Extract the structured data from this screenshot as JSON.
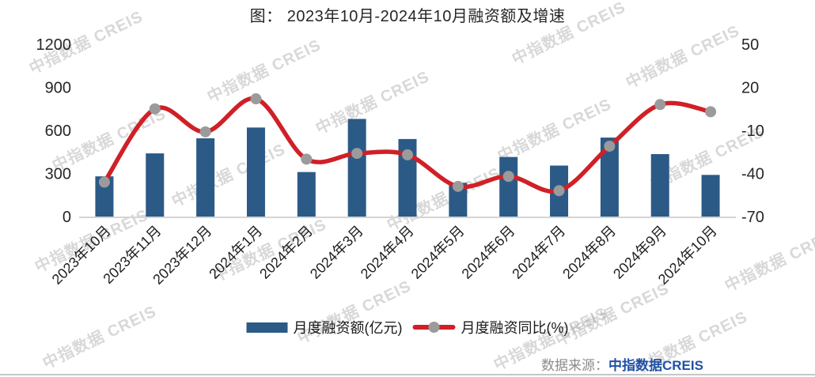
{
  "title": "图： 2023年10月-2024年10月融资额及增速",
  "watermark": {
    "text": "中指数据 CREIS"
  },
  "legend": {
    "bar_label": "月度融资额(亿元)",
    "line_label": "月度融资同比(%)"
  },
  "source": {
    "prefix": "数据来源：",
    "name": "中指数据CREIS"
  },
  "colors": {
    "bar": "#2b5a87",
    "line": "#d02027",
    "marker": "#9b9b9b",
    "axis_line": "#d4d4d4",
    "tick_text": "#262626",
    "source_blue": "#2151a6"
  },
  "chart_data": {
    "type": "bar+line",
    "title": "图： 2023年10月-2024年10月融资额及增速",
    "categories": [
      "2023年10月",
      "2023年11月",
      "2023年12月",
      "2024年1月",
      "2024年2月",
      "2024年3月",
      "2024年4月",
      "2024年5月",
      "2024年6月",
      "2024年7月",
      "2024年8月",
      "2024年9月",
      "2024年10月"
    ],
    "series": [
      {
        "name": "月度融资额(亿元)",
        "type": "bar",
        "axis": "left",
        "values": [
          280,
          440,
          545,
          620,
          310,
          680,
          540,
          235,
          415,
          355,
          550,
          435,
          290
        ]
      },
      {
        "name": "月度融资同比(%)",
        "type": "line",
        "axis": "right",
        "values": [
          -46,
          5,
          -11,
          12,
          -30,
          -26,
          -27,
          -49,
          -42,
          -52,
          -21,
          8,
          3
        ]
      }
    ],
    "y_axis_left": {
      "ticks": [
        1200,
        900,
        600,
        300,
        0
      ],
      "min": 0,
      "max": 1200
    },
    "y_axis_right": {
      "ticks": [
        50,
        20,
        -10,
        -40,
        -70
      ],
      "min": -70,
      "max": 50
    },
    "grid": false,
    "legend_position": "bottom"
  }
}
